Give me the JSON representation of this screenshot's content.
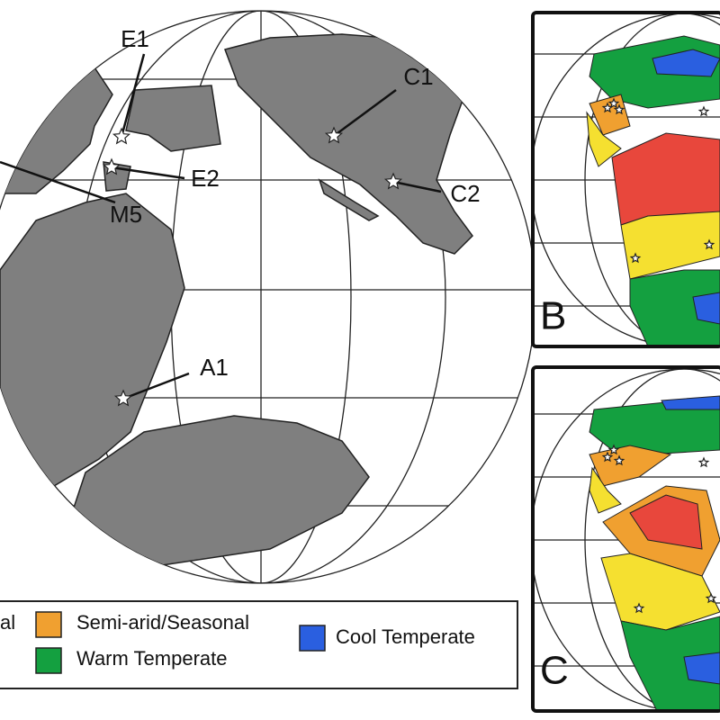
{
  "map": {
    "site_labels": [
      "E1",
      "C1",
      "E2",
      "C2",
      "M5",
      "A1"
    ]
  },
  "panels": [
    {
      "label": "B"
    },
    {
      "label": "C"
    }
  ],
  "legend": {
    "entries": [
      {
        "label": "al"
      },
      {
        "label": "Semi-arid/Seasonal",
        "color": "#f0a030"
      },
      {
        "label": "Warm Temperate",
        "color": "#14a040"
      },
      {
        "label": "Cool Temperate",
        "color": "#2a5fe0"
      }
    ]
  }
}
